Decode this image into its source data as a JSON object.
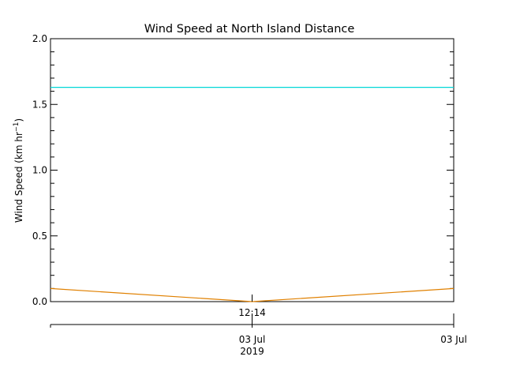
{
  "chart_data": {
    "type": "line",
    "title": "Wind Speed at North Island Distance",
    "ylabel_main": "Wind Speed (km hr",
    "ylabel_exp": "−1",
    "ylabel_close": ")",
    "ylim": [
      0.0,
      2.0
    ],
    "y_major_ticks": [
      0.0,
      0.5,
      1.0,
      1.5,
      2.0
    ],
    "y_tick_labels": [
      "0.0",
      "0.5",
      "1.0",
      "1.5",
      "2.0"
    ],
    "y_minor_step": 0.1,
    "x_range_fraction": [
      0,
      1
    ],
    "x_top_ticks": [
      {
        "position": 0.5,
        "label": "12:14"
      }
    ],
    "x_bottom_ticks": [
      {
        "position": 0.5,
        "label": "03 Jul",
        "sublabel": "2019"
      },
      {
        "position": 1.0,
        "label": "03 Jul",
        "sublabel": ""
      }
    ],
    "grid": false,
    "series": [
      {
        "color": "#00d8d8",
        "x": [
          0,
          1
        ],
        "values": [
          1.63,
          1.63
        ]
      },
      {
        "color": "#e08000",
        "x": [
          0,
          0.5,
          1
        ],
        "values": [
          0.1,
          0.0,
          0.1
        ]
      }
    ]
  }
}
